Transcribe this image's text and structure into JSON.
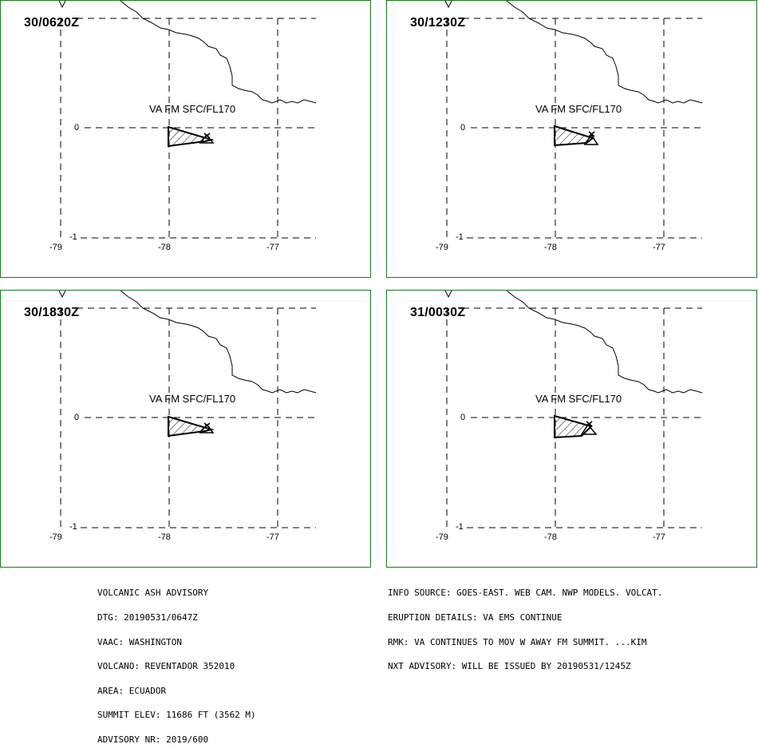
{
  "colors": {
    "frame": "#1a7a1a",
    "lines": "#000000"
  },
  "panels": [
    {
      "time": "30/0620Z",
      "va_label": "VA FM SFC/FL170"
    },
    {
      "time": "30/1230Z",
      "va_label": "VA FM SFC/FL170"
    },
    {
      "time": "30/1830Z",
      "va_label": "VA FM SFC/FL170"
    },
    {
      "time": "31/0030Z",
      "va_label": "VA FM SFC/FL170"
    }
  ],
  "axes": {
    "lon_ticks": [
      "-79",
      "-78",
      "-77"
    ],
    "lat_ticks": [
      "0",
      "-1"
    ]
  },
  "advisory_left": [
    "VOLCANIC ASH ADVISORY",
    "DTG: 20190531/0647Z",
    "VAAC: WASHINGTON",
    "VOLCANO: REVENTADOR 352010",
    "AREA: ECUADOR",
    "SUMMIT ELEV: 11686 FT (3562 M)",
    "ADVISORY NR: 2019/600"
  ],
  "advisory_right": [
    "INFO SOURCE: GOES-EAST. WEB CAM. NWP MODELS. VOLCAT.",
    "ERUPTION DETAILS: VA EMS CONTINUE",
    "RMK: VA CONTINUES TO MOV W AWAY FM SUMMIT. ...KIM",
    "NXT ADVISORY: WILL BE ISSUED BY 20190531/1245Z"
  ]
}
